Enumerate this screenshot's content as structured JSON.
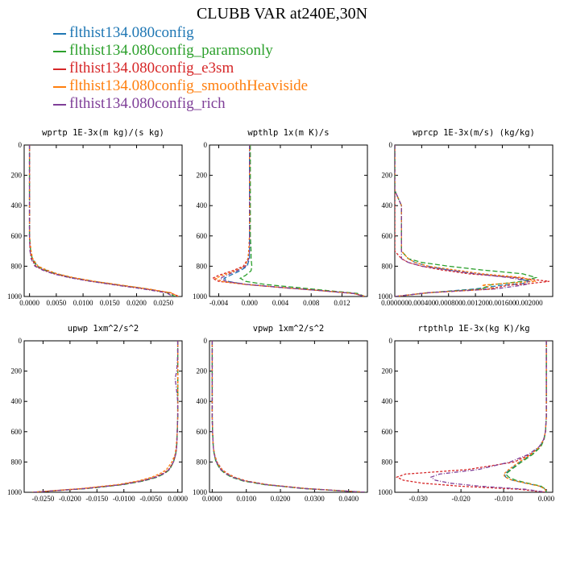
{
  "title": "CLUBB VAR at240E,30N",
  "legend": [
    {
      "label": "flthist134.080config",
      "color": "#1f77b4"
    },
    {
      "label": "flthist134.080config_paramsonly",
      "color": "#2ca02c"
    },
    {
      "label": "flthist134.080config_e3sm",
      "color": "#d62728"
    },
    {
      "label": "flthist134.080config_smoothHeaviside",
      "color": "#ff7f0e"
    },
    {
      "label": "flthist134.080config_rich",
      "color": "#7f3f98"
    }
  ],
  "chart_data": [
    {
      "type": "line",
      "title": "wprtp  1E-3x(m kg)/(s kg)",
      "xlim": [
        -0.001,
        0.0285
      ],
      "xticks": [
        0.0,
        0.005,
        0.01,
        0.015,
        0.02,
        0.025
      ],
      "xticklabels": [
        "0.0000",
        "0.0050",
        "0.0100",
        "0.0150",
        "0.0200",
        "0.0250"
      ],
      "ylim": [
        0,
        1000
      ],
      "yticks": [
        0,
        200,
        400,
        600,
        800,
        1000
      ],
      "series_order": [
        "flthist134.080config",
        "flthist134.080config_paramsonly",
        "flthist134.080config_e3sm",
        "flthist134.080config_smoothHeaviside",
        "flthist134.080config_rich"
      ],
      "y": [
        0,
        100,
        200,
        300,
        400,
        500,
        600,
        700,
        750,
        800,
        825,
        850,
        875,
        900,
        925,
        950,
        975,
        1000
      ],
      "series": [
        {
          "values": [
            0,
            0,
            0,
            0,
            0,
            0,
            0,
            0.0002,
            0.0005,
            0.0015,
            0.003,
            0.005,
            0.008,
            0.012,
            0.017,
            0.022,
            0.026,
            0.027
          ]
        },
        {
          "values": [
            0,
            0,
            0,
            0,
            0,
            0,
            0,
            0.0002,
            0.0005,
            0.0013,
            0.0028,
            0.0048,
            0.0078,
            0.0118,
            0.0168,
            0.0218,
            0.0258,
            0.0272
          ]
        },
        {
          "values": [
            0,
            0,
            0,
            0,
            0,
            0,
            0,
            0.0001,
            0.0004,
            0.0012,
            0.0026,
            0.0046,
            0.0076,
            0.0116,
            0.0166,
            0.0216,
            0.0262,
            0.028
          ]
        },
        {
          "values": [
            0,
            0,
            0,
            0,
            0,
            0,
            0,
            0.0003,
            0.0006,
            0.0016,
            0.0032,
            0.0052,
            0.0082,
            0.0122,
            0.0172,
            0.0222,
            0.0264,
            0.0278
          ]
        },
        {
          "values": [
            0,
            0,
            0,
            0,
            0,
            0,
            0,
            0.0001,
            0.0003,
            0.001,
            0.0024,
            0.0044,
            0.0074,
            0.0114,
            0.0162,
            0.0212,
            0.0255,
            0.0268
          ]
        }
      ]
    },
    {
      "type": "line",
      "title": "wpthlp  1x(m K)/s",
      "xlim": [
        -0.0052,
        0.0153
      ],
      "xticks": [
        -0.004,
        0.0,
        0.004,
        0.008,
        0.012
      ],
      "xticklabels": [
        "-0.004",
        "0.000",
        "0.004",
        "0.008",
        "0.012"
      ],
      "ylim": [
        0,
        1000
      ],
      "yticks": [
        0,
        200,
        400,
        600,
        800,
        1000
      ],
      "y": [
        0,
        100,
        200,
        300,
        400,
        500,
        600,
        700,
        750,
        800,
        830,
        860,
        880,
        900,
        920,
        940,
        960,
        980,
        1000
      ],
      "series": [
        {
          "values": [
            0,
            0,
            0,
            0,
            0,
            0,
            0,
            0,
            0,
            -0.0003,
            -0.0012,
            -0.0025,
            -0.0033,
            -0.0028,
            -0.0005,
            0.004,
            0.009,
            0.0135,
            0.015
          ]
        },
        {
          "values": [
            0.0001,
            0.0001,
            0.0001,
            0.0001,
            0.0001,
            0.0001,
            0.0001,
            0.0002,
            0.0002,
            0.0003,
            0.0002,
            -0.0005,
            -0.0012,
            -0.0005,
            0.002,
            0.006,
            0.01,
            0.014,
            0.015
          ]
        },
        {
          "values": [
            0,
            0,
            0,
            0,
            0,
            0,
            0,
            -0.0001,
            -0.0002,
            -0.0008,
            -0.0022,
            -0.004,
            -0.0048,
            -0.004,
            -0.0005,
            0.004,
            0.009,
            0.0135,
            0.015
          ]
        },
        {
          "values": [
            0,
            0,
            0,
            0,
            0,
            0,
            0,
            -0.0001,
            -0.0002,
            -0.0006,
            -0.0018,
            -0.0035,
            -0.0044,
            -0.0036,
            -0.0005,
            0.004,
            0.009,
            0.0135,
            0.015
          ]
        },
        {
          "values": [
            0,
            0,
            0,
            0,
            0,
            0,
            0,
            0,
            -0.0001,
            -0.0005,
            -0.0016,
            -0.003,
            -0.0038,
            -0.003,
            -0.0003,
            0.004,
            0.009,
            0.0135,
            0.015
          ]
        }
      ]
    },
    {
      "type": "line",
      "title": "wprcp  1E-3x(m/s) (kg/kg)",
      "xlim": [
        0.0,
        0.00235
      ],
      "xticks": [
        0.0,
        0.0004,
        0.0008,
        0.0012,
        0.0016,
        0.002
      ],
      "xticklabels": [
        "0.000000",
        "0.000400",
        "0.000800",
        "0.001200",
        "0.001600",
        "0.002000"
      ],
      "ylim": [
        0,
        1000
      ],
      "yticks": [
        0,
        200,
        400,
        600,
        800,
        1000
      ],
      "y": [
        0,
        300,
        400,
        500,
        600,
        700,
        750,
        775,
        800,
        825,
        850,
        875,
        900,
        915,
        925,
        950,
        975,
        1000
      ],
      "series": [
        {
          "values": [
            0,
            0,
            0.0001,
            0.0001,
            0.0001,
            0.0001,
            0.0002,
            0.0003,
            0.0005,
            0.0008,
            0.0012,
            0.0018,
            0.002,
            0.0019,
            0.0016,
            0.0012,
            0.0005,
            0
          ]
        },
        {
          "values": [
            0,
            0,
            0.0001,
            0.0001,
            0.0001,
            0.0001,
            0.0002,
            0.0004,
            0.0008,
            0.0013,
            0.0019,
            0.0021,
            0.0019,
            0.0016,
            0.0014,
            0.0013,
            0.0005,
            0
          ]
        },
        {
          "values": [
            0,
            0,
            0,
            0,
            0,
            0,
            0.0001,
            0.0002,
            0.0004,
            0.0007,
            0.0011,
            0.0018,
            0.0023,
            0.002,
            0.0017,
            0.0014,
            0.0005,
            0
          ]
        },
        {
          "values": [
            0,
            0,
            0.0001,
            0.0001,
            0.0001,
            0.0001,
            0.0002,
            0.0003,
            0.0005,
            0.0009,
            0.0013,
            0.0019,
            0.0021,
            0.0016,
            0.0013,
            0.0015,
            0.0005,
            0
          ]
        },
        {
          "values": [
            0,
            0,
            0.0001,
            0.0001,
            0.0001,
            0.0001,
            0.0001,
            0.0002,
            0.0004,
            0.0008,
            0.0012,
            0.0017,
            0.002,
            0.002,
            0.0019,
            0.0015,
            0.0005,
            0
          ]
        }
      ]
    },
    {
      "type": "line",
      "title": "upwp  1xm^2/s^2",
      "xlim": [
        -0.0285,
        0.0008
      ],
      "xticks": [
        -0.025,
        -0.02,
        -0.015,
        -0.01,
        -0.005,
        0.0
      ],
      "xticklabels": [
        "-0.0250",
        "-0.0200",
        "-0.0150",
        "-0.0100",
        "-0.0050",
        "0.0000"
      ],
      "ylim": [
        0,
        1000
      ],
      "yticks": [
        0,
        200,
        400,
        600,
        800,
        1000
      ],
      "y": [
        0,
        100,
        200,
        250,
        300,
        400,
        500,
        600,
        700,
        750,
        800,
        850,
        875,
        900,
        925,
        950,
        975,
        1000
      ],
      "series": [
        {
          "values": [
            0,
            0,
            0,
            0,
            0,
            0,
            0,
            -0.0001,
            -0.0002,
            -0.0004,
            -0.0008,
            -0.0016,
            -0.0025,
            -0.004,
            -0.0065,
            -0.0105,
            -0.017,
            -0.027
          ]
        },
        {
          "values": [
            0,
            0,
            0,
            0,
            0,
            0,
            0,
            -0.0001,
            -0.0002,
            -0.0004,
            -0.0008,
            -0.0015,
            -0.0024,
            -0.0038,
            -0.0063,
            -0.0102,
            -0.0167,
            -0.027
          ]
        },
        {
          "values": [
            0,
            0,
            0,
            0,
            0,
            0,
            0,
            -0.0001,
            -0.0002,
            -0.0004,
            -0.0008,
            -0.0017,
            -0.0027,
            -0.0043,
            -0.0068,
            -0.0108,
            -0.0173,
            -0.027
          ]
        },
        {
          "values": [
            0,
            0,
            0,
            0,
            0,
            0,
            0,
            -0.0001,
            -0.0003,
            -0.0005,
            -0.0011,
            -0.0021,
            -0.0032,
            -0.0048,
            -0.0073,
            -0.0113,
            -0.0178,
            -0.027
          ]
        },
        {
          "values": [
            0,
            0,
            -0.0002,
            -0.0005,
            -0.0003,
            0,
            0,
            -0.0001,
            -0.0002,
            -0.0004,
            -0.0008,
            -0.0016,
            -0.0025,
            -0.004,
            -0.0065,
            -0.0105,
            -0.017,
            -0.027
          ]
        }
      ]
    },
    {
      "type": "line",
      "title": "vpwp  1xm^2/s^2",
      "xlim": [
        -0.0008,
        0.0455
      ],
      "xticks": [
        0.0,
        0.01,
        0.02,
        0.03,
        0.04
      ],
      "xticklabels": [
        "0.0000",
        "0.0100",
        "0.0200",
        "0.0300",
        "0.0400"
      ],
      "ylim": [
        0,
        1000
      ],
      "yticks": [
        0,
        200,
        400,
        600,
        800,
        1000
      ],
      "y": [
        0,
        100,
        200,
        300,
        400,
        500,
        600,
        700,
        750,
        800,
        850,
        875,
        900,
        925,
        950,
        975,
        1000
      ],
      "series": [
        {
          "values": [
            0,
            0,
            0,
            0,
            0,
            0,
            0.0001,
            0.0003,
            0.0006,
            0.0012,
            0.0026,
            0.004,
            0.006,
            0.0095,
            0.016,
            0.027,
            0.045
          ]
        },
        {
          "values": [
            0,
            0,
            0,
            0,
            0,
            0,
            0.0001,
            0.0003,
            0.0006,
            0.0011,
            0.0024,
            0.0037,
            0.0056,
            0.009,
            0.0155,
            0.0265,
            0.045
          ]
        },
        {
          "values": [
            0,
            0,
            0,
            0,
            0,
            0,
            0.0001,
            0.0003,
            0.0007,
            0.0014,
            0.0029,
            0.0044,
            0.0065,
            0.01,
            0.0165,
            0.0275,
            0.045
          ]
        },
        {
          "values": [
            0,
            0,
            0,
            0,
            0,
            0,
            0.0001,
            0.0003,
            0.0007,
            0.0013,
            0.0028,
            0.0042,
            0.0063,
            0.0098,
            0.0162,
            0.0272,
            0.045
          ]
        },
        {
          "values": [
            0,
            0,
            0,
            0,
            0,
            0,
            0.0001,
            0.0003,
            0.0006,
            0.0012,
            0.0025,
            0.0039,
            0.0059,
            0.0094,
            0.0159,
            0.0268,
            0.045
          ]
        }
      ]
    },
    {
      "type": "line",
      "title": "rtpthlp  1E-3x(kg K)/kg",
      "xlim": [
        -0.0355,
        0.0015
      ],
      "xticks": [
        -0.03,
        -0.02,
        -0.01,
        0.0
      ],
      "xticklabels": [
        "-0.030",
        "-0.020",
        "-0.010",
        "0.000"
      ],
      "ylim": [
        0,
        1000
      ],
      "yticks": [
        0,
        200,
        400,
        600,
        800,
        1000
      ],
      "y": [
        0,
        200,
        400,
        500,
        600,
        650,
        700,
        750,
        800,
        850,
        880,
        900,
        920,
        940,
        960,
        980,
        1000
      ],
      "series": [
        {
          "values": [
            0,
            0,
            0,
            0,
            -0.0002,
            -0.0006,
            -0.0015,
            -0.0035,
            -0.0062,
            -0.0085,
            -0.0098,
            -0.0095,
            -0.008,
            -0.0048,
            -0.0015,
            -0.0003,
            0
          ]
        },
        {
          "values": [
            0,
            0,
            0,
            0,
            -0.0002,
            -0.0005,
            -0.0013,
            -0.0032,
            -0.0058,
            -0.0082,
            -0.0095,
            -0.0088,
            -0.0072,
            -0.0043,
            -0.0012,
            -0.0002,
            0
          ]
        },
        {
          "values": [
            0,
            0,
            0,
            0,
            -0.0002,
            -0.0006,
            -0.0016,
            -0.0038,
            -0.0075,
            -0.0185,
            -0.033,
            -0.035,
            -0.0335,
            -0.029,
            -0.02,
            -0.0065,
            0
          ]
        },
        {
          "values": [
            0,
            0,
            0,
            0,
            -0.0002,
            -0.0006,
            -0.0016,
            -0.0036,
            -0.0064,
            -0.0088,
            -0.01,
            -0.0097,
            -0.008,
            -0.0048,
            -0.0015,
            -0.0003,
            0
          ]
        },
        {
          "values": [
            0,
            0,
            0,
            0,
            -0.0002,
            -0.0006,
            -0.0017,
            -0.0042,
            -0.0085,
            -0.016,
            -0.025,
            -0.027,
            -0.026,
            -0.0225,
            -0.0155,
            -0.005,
            0
          ]
        }
      ]
    }
  ]
}
